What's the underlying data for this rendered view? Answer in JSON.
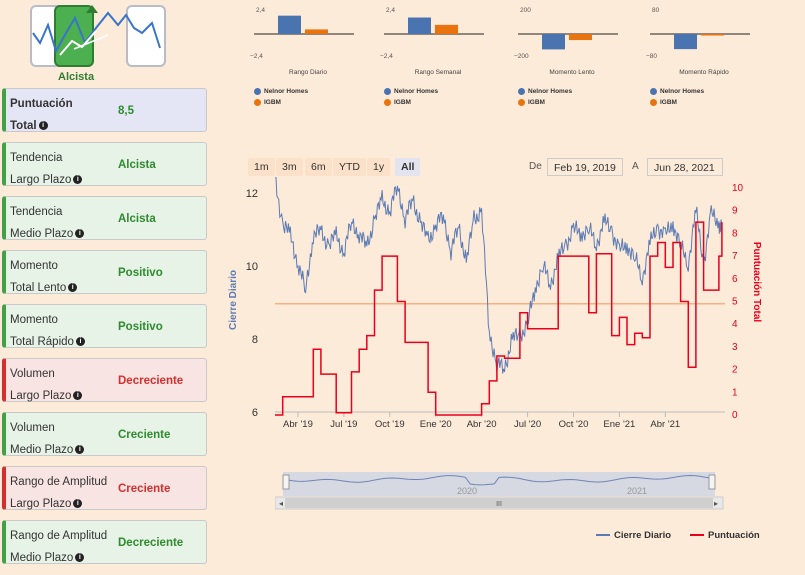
{
  "logo": {
    "label": "Alcista"
  },
  "cards": [
    {
      "line1": "Puntuación",
      "line2": "Total",
      "value": "8,5",
      "tone": "blue",
      "bold": true
    },
    {
      "line1": "Tendencia",
      "line2": "Largo Plazo",
      "value": "Alcista",
      "tone": "green"
    },
    {
      "line1": "Tendencia",
      "line2": "Medio Plazo",
      "value": "Alcista",
      "tone": "green"
    },
    {
      "line1": "Momento",
      "line2": "Total Lento",
      "value": "Positivo",
      "tone": "green"
    },
    {
      "line1": "Momento",
      "line2": "Total Rápido",
      "value": "Positivo",
      "tone": "green"
    },
    {
      "line1": "Volumen",
      "line2": "Largo Plazo",
      "value": "Decreciente",
      "tone": "red"
    },
    {
      "line1": "Volumen",
      "line2": "Medio Plazo",
      "value": "Creciente",
      "tone": "green"
    },
    {
      "line1": "Rango de Amplitud",
      "line2": "Largo Plazo",
      "value": "Creciente",
      "tone": "red"
    },
    {
      "line1": "Rango de Amplitud",
      "line2": "Medio Plazo",
      "value": "Decreciente",
      "tone": "green"
    }
  ],
  "range": {
    "buttons": [
      "1m",
      "3m",
      "6m",
      "YTD",
      "1y",
      "All"
    ],
    "selected": "All",
    "from_label": "De",
    "from": "Feb 19, 2019",
    "to_label": "A",
    "to": "Jun 28, 2021"
  },
  "colors": {
    "nelnor": "#4a74b0",
    "igbm": "#e8730f",
    "close": "#5b7bb5",
    "score": "#e8001c",
    "avg": "#f4b183"
  },
  "chart_data": [
    {
      "type": "bar",
      "title": "Rango Diario",
      "categories": [
        "Nelnor Homes",
        "IGBM"
      ],
      "values": [
        2.0,
        0.5
      ],
      "ylim": [
        -2.4,
        2.4
      ],
      "tick_top": "2,4",
      "tick_bottom": "−2,4"
    },
    {
      "type": "bar",
      "title": "Rango Semanal",
      "categories": [
        "Nelnor Homes",
        "IGBM"
      ],
      "values": [
        1.8,
        1.0
      ],
      "ylim": [
        -2.4,
        2.4
      ],
      "tick_top": "2,4",
      "tick_bottom": "−2,4"
    },
    {
      "type": "bar",
      "title": "Momento Lento",
      "categories": [
        "Nelnor Homes",
        "IGBM"
      ],
      "values": [
        -140,
        -55
      ],
      "ylim": [
        -200,
        200
      ],
      "tick_top": "200",
      "tick_bottom": "−200"
    },
    {
      "type": "bar",
      "title": "Momento Rápido",
      "categories": [
        "Nelnor Homes",
        "IGBM"
      ],
      "values": [
        -55,
        -3
      ],
      "ylim": [
        -80,
        80
      ],
      "tick_top": "80",
      "tick_bottom": "−80"
    },
    {
      "type": "line",
      "title": "",
      "xlabel": "",
      "ylabel_left": "Cierre Diario",
      "ylabel_right": "Puntuación Total",
      "x_ticks": [
        "Abr '19",
        "Jul '19",
        "Oct '19",
        "Ene '20",
        "Abr '20",
        "Jul '20",
        "Oct '20",
        "Ene '21",
        "Abr '21"
      ],
      "y_left_ticks": [
        "12",
        "10",
        "8",
        "6"
      ],
      "y_left_range": [
        6,
        12
      ],
      "y_right_ticks": [
        "10",
        "9",
        "8",
        "7",
        "6",
        "5",
        "4",
        "3",
        "2",
        "1",
        "0"
      ],
      "y_right_range": [
        0,
        10
      ],
      "avg_line": 4.9,
      "series": [
        {
          "name": "Cierre Diario",
          "axis": "left",
          "x_month": [
            0,
            0.5,
            1,
            1.5,
            2,
            2.5,
            3,
            3.5,
            4,
            4.5,
            5,
            5.5,
            6,
            6.5,
            7,
            7.5,
            8,
            8.5,
            9,
            9.5,
            10,
            10.5,
            11,
            11.5,
            12,
            12.5,
            13,
            13.5,
            14,
            14.5,
            15,
            15.5,
            16,
            16.5,
            17,
            17.5,
            18,
            18.5,
            19,
            19.5,
            20,
            20.5,
            21,
            21.5,
            22,
            22.5,
            23,
            23.5,
            24,
            24.5,
            25,
            25.5,
            26,
            26.5,
            27,
            27.5,
            28,
            28.5,
            29,
            29.2
          ],
          "values": [
            12.3,
            11.2,
            10.8,
            10.1,
            9.3,
            10.9,
            10.9,
            10.6,
            10.8,
            10.4,
            11.2,
            10.9,
            10.5,
            11.3,
            11.8,
            11.5,
            12.2,
            11.3,
            11.8,
            11.2,
            10.7,
            11.1,
            11.4,
            10.4,
            11.1,
            10.1,
            11.3,
            11.5,
            8.2,
            7.3,
            7.2,
            8.0,
            8.1,
            8.4,
            9.4,
            10.0,
            9.5,
            10.2,
            10.6,
            11.0,
            10.9,
            11.0,
            10.6,
            11.2,
            11.0,
            10.4,
            10.6,
            10.2,
            9.7,
            10.6,
            11.1,
            10.8,
            11.2,
            10.5,
            10.1,
            11.5,
            10.1,
            11.4,
            11.2,
            11.0
          ]
        },
        {
          "name": "Puntuación",
          "axis": "right",
          "x_month": [
            0,
            0.5,
            1,
            1.5,
            2,
            2.5,
            3,
            3.5,
            4,
            4.5,
            5,
            5.5,
            6,
            6.5,
            7,
            7.5,
            8,
            8.5,
            9,
            9.5,
            10,
            10.5,
            11,
            11.5,
            12,
            12.5,
            13,
            13.5,
            14,
            14.5,
            15,
            15.5,
            16,
            16.5,
            17,
            17.5,
            18,
            18.5,
            19,
            19.5,
            20,
            20.5,
            21,
            21.5,
            22,
            22.5,
            23,
            23.5,
            24,
            24.5,
            25,
            25.5,
            26,
            26.5,
            27,
            27.5,
            28,
            28.5,
            29,
            29.2
          ],
          "values": [
            0,
            0.8,
            0.8,
            0.8,
            0.8,
            2.9,
            1.8,
            1.8,
            0.1,
            0.1,
            1.9,
            2.9,
            3.5,
            5.5,
            7.0,
            7.0,
            5.0,
            3.2,
            3.2,
            3.2,
            1.0,
            0,
            0,
            0,
            0,
            0,
            0,
            0.5,
            1.5,
            2.6,
            2.5,
            2.5,
            4.5,
            3.8,
            3.8,
            3.8,
            3.8,
            7.0,
            7.0,
            7.0,
            7.0,
            4.5,
            7.1,
            7.1,
            3.5,
            4.3,
            3.1,
            3.6,
            3.4,
            7.0,
            7.6,
            6.5,
            7.6,
            5.0,
            2.1,
            8.5,
            5.5,
            5.5,
            7.0,
            8.5
          ]
        }
      ]
    }
  ],
  "navigator": {
    "years": [
      "2020",
      "2021"
    ],
    "scroll_label": "III"
  },
  "legend": {
    "close_label": "Cierre Diario",
    "score_label": "Puntuación"
  }
}
